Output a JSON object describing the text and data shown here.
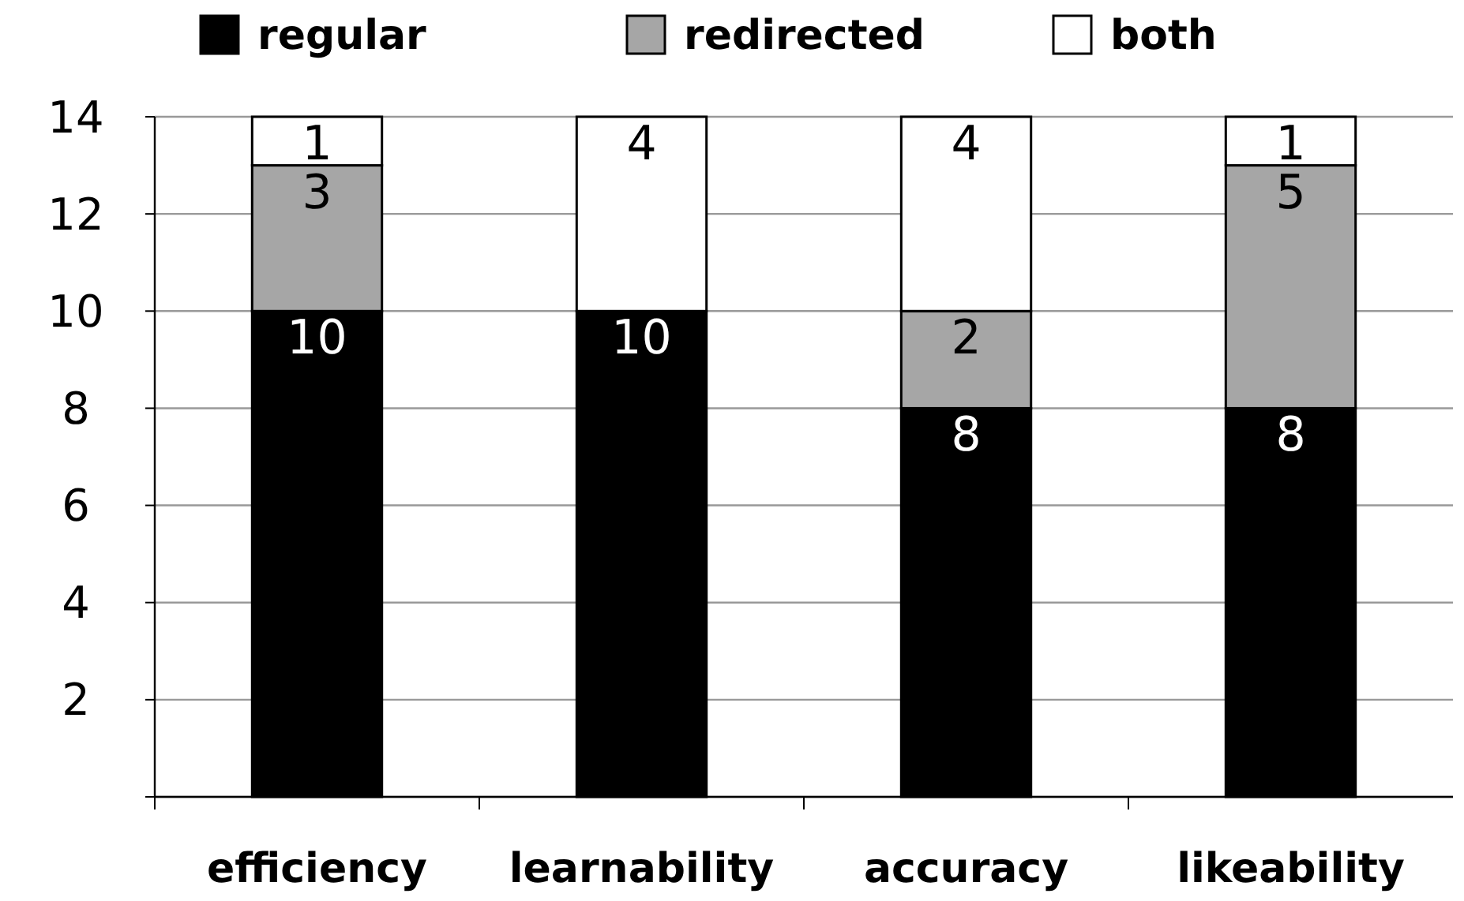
{
  "chart_data": {
    "type": "bar",
    "stacked": true,
    "categories": [
      "efficiency",
      "learnability",
      "accuracy",
      "likeability"
    ],
    "series": [
      {
        "name": "regular",
        "color": "#000000",
        "values": [
          10,
          10,
          8,
          8
        ],
        "value_labels": [
          "10",
          "10",
          "8",
          "8"
        ]
      },
      {
        "name": "redirected",
        "color": "#a6a6a6",
        "values": [
          3,
          0,
          2,
          5
        ],
        "value_labels": [
          "3",
          null,
          "2",
          "5"
        ]
      },
      {
        "name": "both",
        "color": "#ffffff",
        "values": [
          1,
          4,
          4,
          1
        ],
        "value_labels": [
          "1",
          "4",
          "4",
          "1"
        ]
      }
    ],
    "ylim": [
      0,
      14
    ],
    "yticks": [
      {
        "value": 0,
        "label": null
      },
      2,
      4,
      6,
      8,
      10,
      12,
      14
    ],
    "grid": "y",
    "legend": "top"
  }
}
